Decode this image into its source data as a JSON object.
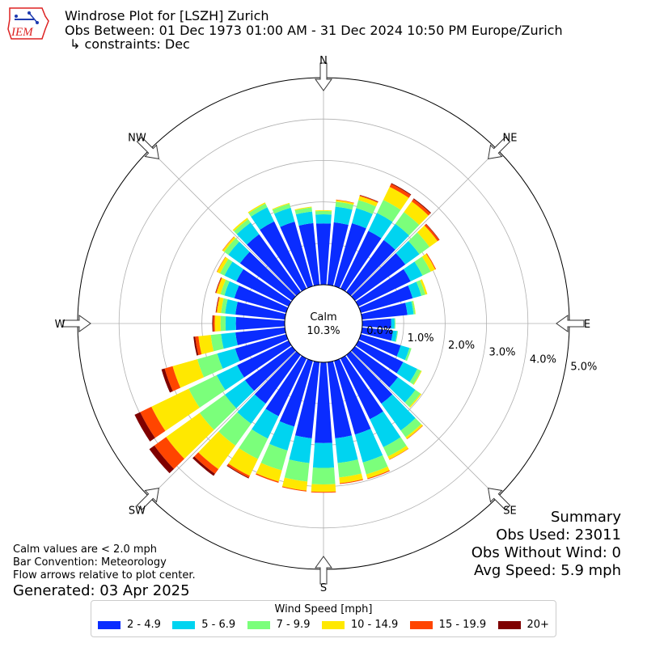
{
  "header": {
    "logo_text": "IEM",
    "title": "Windrose Plot for [LSZH] Zurich",
    "subtitle": "Obs Between: 01 Dec 1973 01:00 AM - 31 Dec 2024 10:50 PM Europe/Zurich",
    "constraints": "↳ constraints: Dec"
  },
  "chart_data": {
    "type": "windrose",
    "directions": [
      "N",
      "NNE",
      "NE",
      "ENE",
      "E",
      "ESE",
      "SE",
      "SSE",
      "S",
      "SSW",
      "SW",
      "WSW",
      "W",
      "WNW",
      "NW",
      "NNW"
    ],
    "compass_labels": [
      "N",
      "NE",
      "E",
      "SE",
      "S",
      "SW",
      "W",
      "NW"
    ],
    "radial_ticks": [
      0.0,
      1.0,
      2.0,
      3.0,
      4.0,
      5.0
    ],
    "radial_tick_labels": [
      "0.0%",
      "1.0%",
      "2.0%",
      "3.0%",
      "4.0%",
      "5.0%"
    ],
    "rmax": 5.0,
    "calm_label": "Calm",
    "calm_value": "10.3%",
    "calm_percent": 10.3,
    "sector_count": 36,
    "sector_directions_deg": [
      0,
      10,
      20,
      30,
      40,
      50,
      60,
      70,
      80,
      90,
      100,
      110,
      120,
      130,
      140,
      150,
      160,
      170,
      180,
      190,
      200,
      210,
      220,
      230,
      240,
      250,
      260,
      270,
      280,
      290,
      300,
      310,
      320,
      330,
      340,
      350
    ],
    "colors": [
      "#0a2cff",
      "#00d4f0",
      "#7bff7b",
      "#ffe800",
      "#ff4500",
      "#7f0000"
    ],
    "series": [
      {
        "name": "2 - 4.9",
        "values": [
          1.48,
          1.52,
          1.58,
          1.55,
          1.55,
          1.5,
          1.4,
          1.3,
          1.1,
          0.7,
          0.75,
          1.0,
          1.2,
          1.28,
          1.45,
          1.63,
          1.85,
          1.85,
          1.95,
          1.85,
          1.65,
          1.55,
          1.45,
          1.4,
          1.38,
          1.28,
          1.2,
          1.18,
          1.2,
          1.3,
          1.4,
          1.55,
          1.72,
          1.8,
          1.62,
          1.5
        ]
      },
      {
        "name": "5 - 6.9",
        "values": [
          0.22,
          0.38,
          0.38,
          0.48,
          0.48,
          0.42,
          0.32,
          0.22,
          0.15,
          0.08,
          0.1,
          0.22,
          0.38,
          0.52,
          0.8,
          0.75,
          0.7,
          0.6,
          0.6,
          0.6,
          0.6,
          0.6,
          0.6,
          0.6,
          0.55,
          0.45,
          0.35,
          0.25,
          0.25,
          0.25,
          0.32,
          0.35,
          0.35,
          0.38,
          0.35,
          0.28
        ]
      },
      {
        "name": "7 - 9.9",
        "values": [
          0.08,
          0.12,
          0.2,
          0.35,
          0.35,
          0.3,
          0.22,
          0.1,
          0.04,
          0.02,
          0.02,
          0.05,
          0.1,
          0.15,
          0.2,
          0.25,
          0.3,
          0.35,
          0.4,
          0.45,
          0.5,
          0.55,
          0.65,
          0.75,
          0.75,
          0.5,
          0.25,
          0.12,
          0.1,
          0.1,
          0.12,
          0.12,
          0.1,
          0.1,
          0.1,
          0.1
        ]
      },
      {
        "name": "10 - 14.9",
        "values": [
          0.02,
          0.04,
          0.1,
          0.35,
          0.32,
          0.24,
          0.12,
          0.05,
          0.01,
          0.0,
          0.0,
          0.0,
          0.02,
          0.03,
          0.05,
          0.08,
          0.1,
          0.14,
          0.18,
          0.22,
          0.28,
          0.45,
          0.7,
          1.0,
          1.0,
          0.62,
          0.3,
          0.14,
          0.1,
          0.1,
          0.08,
          0.05,
          0.04,
          0.03,
          0.02,
          0.02
        ]
      },
      {
        "name": "15 - 19.9",
        "values": [
          0.0,
          0.01,
          0.02,
          0.08,
          0.07,
          0.05,
          0.02,
          0.0,
          0.0,
          0.0,
          0.0,
          0.0,
          0.0,
          0.0,
          0.01,
          0.01,
          0.02,
          0.02,
          0.02,
          0.02,
          0.03,
          0.05,
          0.14,
          0.35,
          0.3,
          0.2,
          0.08,
          0.04,
          0.02,
          0.02,
          0.01,
          0.01,
          0.0,
          0.0,
          0.0,
          0.0
        ]
      },
      {
        "name": "20+",
        "values": [
          0.0,
          0.0,
          0.01,
          0.02,
          0.02,
          0.01,
          0.0,
          0.0,
          0.0,
          0.0,
          0.0,
          0.0,
          0.0,
          0.0,
          0.0,
          0.0,
          0.0,
          0.0,
          0.0,
          0.0,
          0.0,
          0.02,
          0.06,
          0.15,
          0.15,
          0.08,
          0.04,
          0.02,
          0.01,
          0.01,
          0.0,
          0.0,
          0.0,
          0.0,
          0.0,
          0.0
        ]
      }
    ],
    "legend_title": "Wind Speed [mph]",
    "legend_placement": "bottom-center",
    "grid": true
  },
  "notes": {
    "calm": "Calm values are < 2.0 mph",
    "convention": "Bar Convention: Meteorology",
    "flow": "Flow arrows relative to plot center.",
    "generated": "Generated: 03 Apr 2025"
  },
  "summary": {
    "title": "Summary",
    "obs_used": "Obs Used: 23011",
    "obs_without_wind": "Obs Without Wind: 0",
    "avg_speed": "Avg Speed: 5.9 mph"
  }
}
